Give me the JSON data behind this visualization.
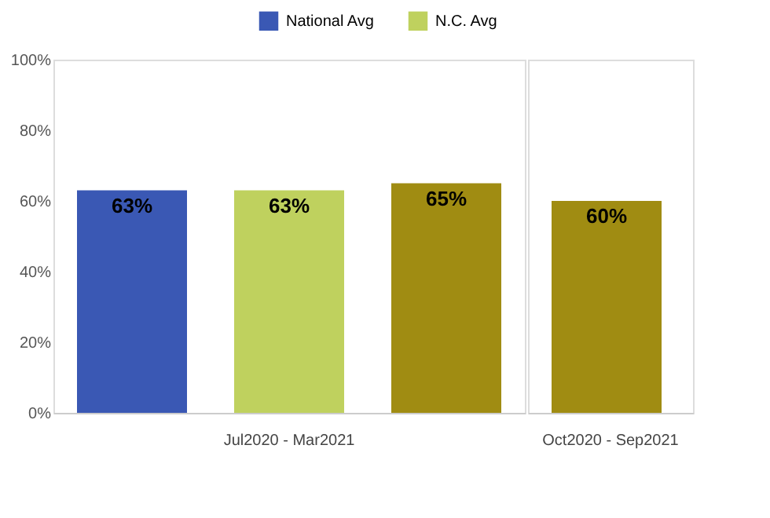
{
  "chart_data": [
    {
      "type": "bar",
      "categories": [
        "Jul2020 - Mar2021"
      ],
      "series": [
        {
          "name": "National Avg",
          "color": "#3a58b4",
          "values": [
            63
          ],
          "value_labels": [
            "63%"
          ]
        },
        {
          "name": "N.C. Avg",
          "color": "#bfd15e",
          "values": [
            63
          ],
          "value_labels": [
            "63%"
          ]
        },
        {
          "color": "#a08c12",
          "values": [
            65
          ],
          "value_labels": [
            "65%"
          ]
        }
      ],
      "ylim": [
        0,
        100
      ],
      "yticks": [
        {
          "value": 0,
          "label": "0%"
        },
        {
          "value": 20,
          "label": "20%"
        },
        {
          "value": 40,
          "label": "40%"
        },
        {
          "value": 60,
          "label": "60%"
        },
        {
          "value": 80,
          "label": "80%"
        },
        {
          "value": 100,
          "label": "100%"
        }
      ],
      "grid": false,
      "legend": "top right"
    },
    {
      "type": "bar",
      "categories": [
        "Oct2020 - Sep2021"
      ],
      "series": [
        {
          "color": "#a08c12",
          "values": [
            60
          ],
          "value_labels": [
            "60%"
          ]
        }
      ],
      "ylim": [
        0,
        100
      ],
      "grid": false,
      "legend": false,
      "tick_labels": "x"
    }
  ]
}
